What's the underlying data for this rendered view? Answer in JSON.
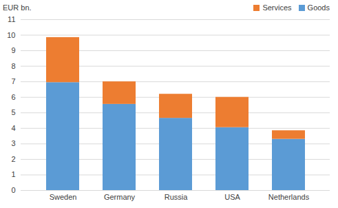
{
  "chart_data": {
    "type": "bar",
    "stacked": true,
    "y_label": "EUR bn.",
    "categories": [
      "Sweden",
      "Germany",
      "Russia",
      "USA",
      "Netherlands"
    ],
    "series": [
      {
        "name": "Goods",
        "color": "#5b9bd5",
        "values": [
          6.95,
          5.55,
          4.65,
          4.05,
          3.3
        ]
      },
      {
        "name": "Services",
        "color": "#ed7d31",
        "values": [
          2.9,
          1.45,
          1.55,
          1.95,
          0.55
        ]
      }
    ],
    "ylim": [
      0,
      11
    ],
    "yticks": [
      0,
      1,
      2,
      3,
      4,
      5,
      6,
      7,
      8,
      9,
      10,
      11
    ],
    "grid": true,
    "legend": "top-right"
  }
}
